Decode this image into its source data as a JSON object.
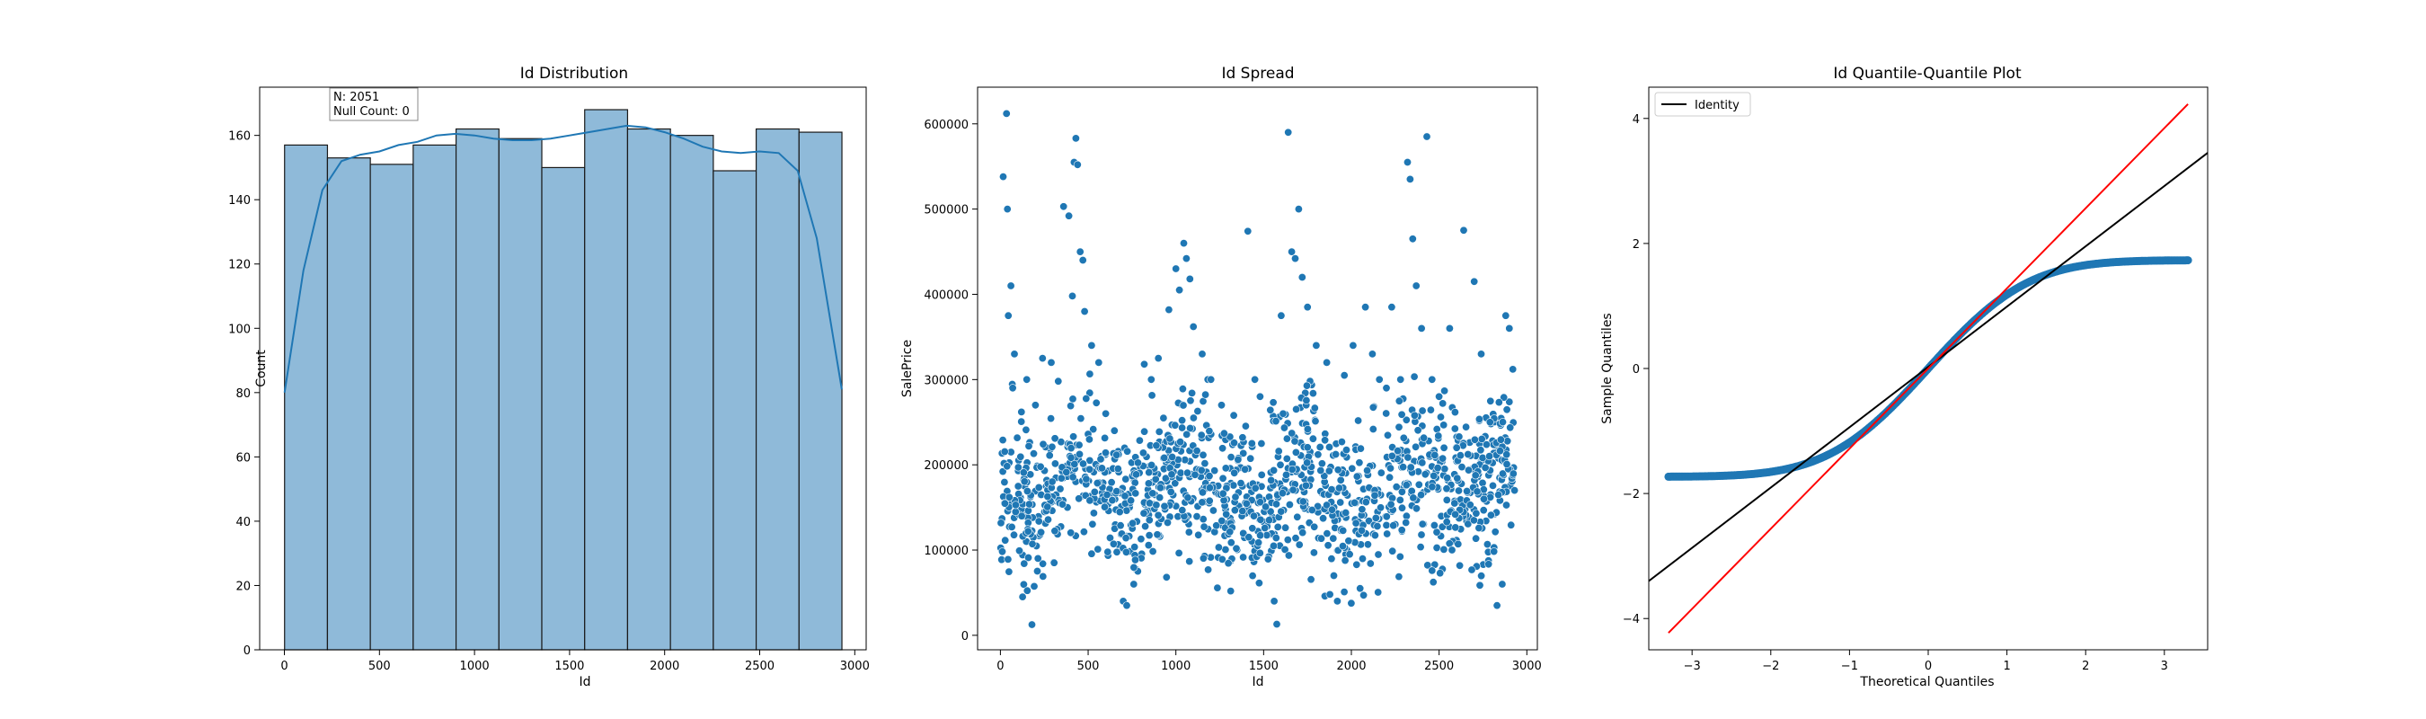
{
  "chart_data": [
    {
      "type": "bar",
      "title": "Id Distribution",
      "xlabel": "Id",
      "ylabel": "Count",
      "xlim": [
        -130,
        3060
      ],
      "ylim": [
        0,
        175
      ],
      "xticks": [
        0,
        500,
        1000,
        1500,
        2000,
        2500,
        3000
      ],
      "yticks": [
        0,
        20,
        40,
        60,
        80,
        100,
        120,
        140,
        160
      ],
      "bin_edges": [
        1,
        226.5,
        452,
        677.5,
        903,
        1128.5,
        1354,
        1579.5,
        1805,
        2030.5,
        2256,
        2481.5,
        2707,
        2932.5
      ],
      "values": [
        157,
        153,
        151,
        157,
        162,
        159,
        150,
        168,
        162,
        160,
        149,
        162,
        161
      ],
      "kde": {
        "x": [
          1,
          100,
          200,
          300,
          400,
          500,
          600,
          700,
          800,
          900,
          1000,
          1100,
          1200,
          1300,
          1400,
          1500,
          1600,
          1700,
          1800,
          1900,
          2000,
          2100,
          2200,
          2300,
          2400,
          2500,
          2600,
          2700,
          2800,
          2932
        ],
        "y": [
          80,
          118,
          143,
          152,
          154,
          155,
          157,
          158,
          160,
          160.5,
          160,
          159,
          158.5,
          158.5,
          159,
          160,
          161,
          162,
          163,
          162.5,
          161,
          159,
          156.5,
          155,
          154.5,
          155,
          154.5,
          149,
          128,
          81
        ]
      },
      "annotation": [
        "N: 2051",
        "Null Count: 0"
      ],
      "colors": {
        "bar": "#8fbad9",
        "edge": "#1a1a1a",
        "kde": "#1f77b4"
      }
    },
    {
      "type": "scatter",
      "title": "Id Spread",
      "xlabel": "Id",
      "ylabel": "SalePrice",
      "xlim": [
        -130,
        3060
      ],
      "ylim": [
        -17000,
        643000
      ],
      "xticks": [
        0,
        500,
        1000,
        1500,
        2000,
        2500,
        3000
      ],
      "yticks": [
        0,
        100000,
        200000,
        300000,
        400000,
        500000,
        600000
      ],
      "ytick_labels": [
        "0",
        "100000",
        "200000",
        "300000",
        "400000",
        "500000",
        "600000"
      ],
      "note": "approx. 2051 points; representative reconstruction",
      "points": [
        [
          16,
          538000
        ],
        [
          35,
          612000
        ],
        [
          40,
          500000
        ],
        [
          60,
          410000
        ],
        [
          45,
          375000
        ],
        [
          80,
          330000
        ],
        [
          70,
          290000
        ],
        [
          120,
          262000
        ],
        [
          150,
          300000
        ],
        [
          200,
          270000
        ],
        [
          180,
          12500
        ],
        [
          240,
          325000
        ],
        [
          290,
          320000
        ],
        [
          330,
          298000
        ],
        [
          360,
          503000
        ],
        [
          390,
          492000
        ],
        [
          410,
          398000
        ],
        [
          420,
          555000
        ],
        [
          430,
          583000
        ],
        [
          440,
          552000
        ],
        [
          455,
          450000
        ],
        [
          470,
          440000
        ],
        [
          480,
          380000
        ],
        [
          520,
          340000
        ],
        [
          560,
          320000
        ],
        [
          600,
          260000
        ],
        [
          650,
          240000
        ],
        [
          700,
          40000
        ],
        [
          720,
          35000
        ],
        [
          760,
          60000
        ],
        [
          820,
          318000
        ],
        [
          860,
          300000
        ],
        [
          900,
          325000
        ],
        [
          960,
          382000
        ],
        [
          1000,
          430000
        ],
        [
          1020,
          405000
        ],
        [
          1045,
          460000
        ],
        [
          1060,
          442000
        ],
        [
          1080,
          418000
        ],
        [
          1100,
          362000
        ],
        [
          1150,
          330000
        ],
        [
          1200,
          300000
        ],
        [
          1260,
          270000
        ],
        [
          1330,
          258000
        ],
        [
          1380,
          232000
        ],
        [
          1410,
          474000
        ],
        [
          1450,
          300000
        ],
        [
          1480,
          280000
        ],
        [
          1560,
          40000
        ],
        [
          1575,
          13000
        ],
        [
          1600,
          375000
        ],
        [
          1640,
          590000
        ],
        [
          1660,
          450000
        ],
        [
          1680,
          442000
        ],
        [
          1700,
          500000
        ],
        [
          1720,
          420000
        ],
        [
          1750,
          385000
        ],
        [
          1800,
          340000
        ],
        [
          1860,
          320000
        ],
        [
          1900,
          70000
        ],
        [
          1920,
          40000
        ],
        [
          1960,
          305000
        ],
        [
          2010,
          340000
        ],
        [
          2050,
          55000
        ],
        [
          2080,
          385000
        ],
        [
          2120,
          330000
        ],
        [
          2160,
          300000
        ],
        [
          2200,
          290000
        ],
        [
          2230,
          385000
        ],
        [
          2280,
          300000
        ],
        [
          2320,
          555000
        ],
        [
          2335,
          535000
        ],
        [
          2350,
          465000
        ],
        [
          2370,
          410000
        ],
        [
          2400,
          360000
        ],
        [
          2430,
          585000
        ],
        [
          2460,
          300000
        ],
        [
          2500,
          280000
        ],
        [
          2560,
          360000
        ],
        [
          2600,
          220000
        ],
        [
          2640,
          475000
        ],
        [
          2700,
          415000
        ],
        [
          2740,
          330000
        ],
        [
          2790,
          250000
        ],
        [
          2830,
          35000
        ],
        [
          2860,
          60000
        ],
        [
          2880,
          375000
        ],
        [
          2900,
          360000
        ],
        [
          2920,
          312000
        ],
        [
          2930,
          170000
        ]
      ],
      "colors": {
        "point": "#1f77b4"
      }
    },
    {
      "type": "scatter",
      "title": "Id Quantile-Quantile Plot",
      "xlabel": "Theoretical Quantiles",
      "ylabel": "Sample Quantiles",
      "xlim": [
        -3.55,
        3.55
      ],
      "ylim": [
        -4.5,
        4.5
      ],
      "xticks": [
        -3,
        -2,
        -1,
        0,
        1,
        2,
        3
      ],
      "yticks": [
        -4,
        -2,
        0,
        2,
        4
      ],
      "legend": {
        "entries": [
          "Identity"
        ],
        "placement": "top-left"
      },
      "identity_line": {
        "x": [
          -3.3,
          3.3
        ],
        "y": [
          -4.23,
          4.23
        ]
      },
      "fit_line": {
        "x": [
          -3.55,
          3.55
        ],
        "y": [
          -3.4,
          3.45
        ]
      },
      "sample_quantile_curve": "sqrt(3)*(2*Phi(x)-1), x from -3.3 to 3.3",
      "colors": {
        "points": "#1f77b4",
        "identity": "#ff0000",
        "fit": "#000000"
      }
    }
  ]
}
